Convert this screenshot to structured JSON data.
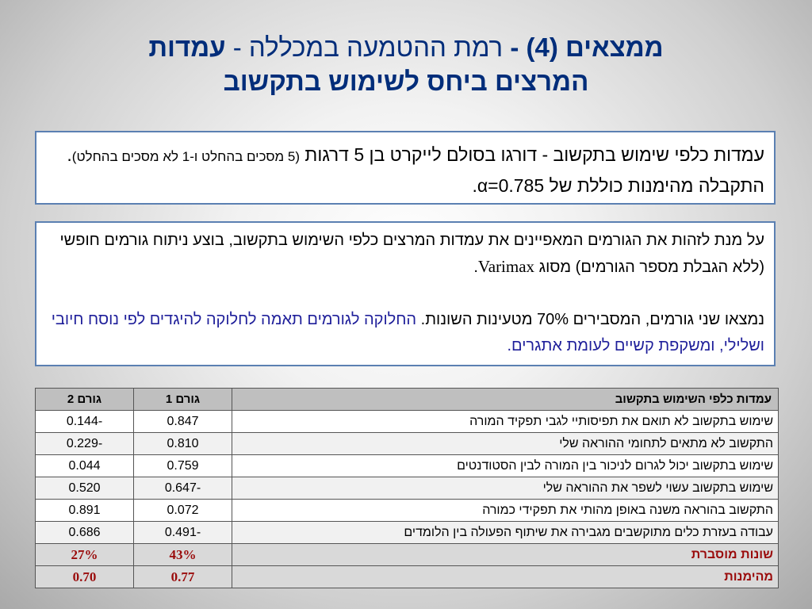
{
  "title": {
    "line1_bold_a": "ממצאים (4) -",
    "line1_normal": " רמת ההטמעה במכללה - ",
    "line1_bold_b": "עמדות",
    "line2": "המרצים ביחס לשימוש בתקשוב"
  },
  "box1": {
    "part1": "עמדות כלפי שימוש בתקשוב - דורגו בסולם לייקרט בן 5 דרגות ",
    "small1": "(5 מסכים בהחלט ו-1 לא מסכים בהחלט)",
    "part2": ". התקבלה מהימנות כוללת של ",
    "alpha": "α=0.785",
    "end": "."
  },
  "box2": {
    "p1_a": "על מנת לזהות את הגורמים המאפיינים את עמדות המרצים כלפי השימוש בתקשוב, בוצע ניתוח גורמים חופשי (ללא הגבלת מספר הגורמים) מסוג ",
    "p1_latin": "Varimax",
    "p1_end": ".",
    "p2_black": "נמצאו שני גורמים, המסבירים 70% מטעינות השונות. ",
    "p2_blue": "החלוקה לגורמים תאמה לחלוקה להיגדים לפי נוסח חיובי ושלילי, ומשקפת קשיים לעומת אתגרים."
  },
  "table": {
    "headers": [
      "עמדות כלפי השימוש בתקשוב",
      "גורם 1",
      "גורם 2"
    ],
    "rows": [
      [
        "שימוש בתקשוב לא תואם את תפיסותיי לגבי תפקיד המורה",
        "0.847",
        "-0.144"
      ],
      [
        "התקשוב לא מתאים לתחומי ההוראה שלי",
        "0.810",
        "-0.229"
      ],
      [
        "שימוש בתקשוב יכול לגרום לניכור בין המורה לבין הסטודנטים",
        "0.759",
        "0.044"
      ],
      [
        "שימוש בתקשוב עשוי לשפר את ההוראה שלי",
        "-0.647",
        "0.520"
      ],
      [
        "התקשוב בהוראה משנה באופן מהותי את תפקידי כמורה",
        "0.072",
        "0.891"
      ],
      [
        "עבודה בעזרת כלים מתוקשבים מגבירה את שיתוף הפעולה בין הלומדים",
        "-0.491",
        "0.686"
      ]
    ],
    "variance": [
      "שונות מוסברת",
      "43%",
      "27%"
    ],
    "reliability": [
      "מהימנות",
      "0.77",
      "0.70"
    ]
  }
}
